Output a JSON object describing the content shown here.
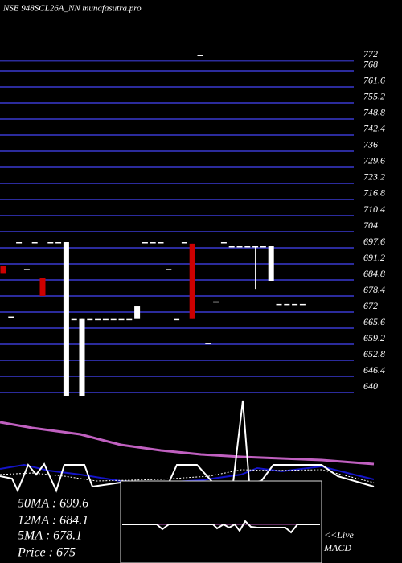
{
  "chart_data": {
    "type": "candlestick",
    "title": "NSE 948SCL26A_NN munafasutra.pro",
    "open": [
      685,
      668,
      697.6,
      687,
      697.6,
      676.2,
      697.6,
      697.6,
      697.6,
      667,
      667,
      667,
      667,
      667,
      667,
      667,
      667,
      672,
      697.6,
      697.6,
      697.6,
      687,
      667,
      697.6,
      667,
      772,
      657.5,
      674,
      697.6,
      696,
      696,
      696,
      696,
      696,
      696,
      673,
      673,
      673,
      673
    ],
    "high": [
      688,
      668,
      697.6,
      687,
      697.6,
      683.2,
      697.6,
      697.6,
      697.6,
      667,
      667,
      667,
      667,
      667,
      667,
      667,
      667,
      672,
      697.6,
      697.6,
      697.6,
      687,
      667,
      697.6,
      697,
      772,
      657.5,
      674,
      697.6,
      696,
      696,
      696,
      696,
      696,
      696,
      673,
      673,
      673,
      673
    ],
    "low": [
      685,
      668,
      697.6,
      687,
      697.6,
      676.2,
      697.6,
      697.6,
      636.5,
      667,
      636.5,
      667,
      667,
      667,
      667,
      667,
      667,
      667,
      697.6,
      697.6,
      697.6,
      687,
      667,
      697.6,
      667,
      772,
      657.5,
      674,
      697.6,
      696,
      696,
      696,
      679,
      696,
      682,
      673,
      673,
      673,
      673
    ],
    "close": [
      688,
      668,
      697.6,
      687,
      697.6,
      683.2,
      697.6,
      697.6,
      636.5,
      667,
      636.5,
      667,
      667,
      667,
      667,
      667,
      667,
      667,
      697.6,
      697.6,
      697.6,
      687,
      667,
      697.6,
      697,
      772,
      657.5,
      674,
      697.6,
      696,
      696,
      696,
      696,
      696,
      682,
      673,
      673,
      673,
      673
    ],
    "up_color": "#cc0000",
    "down_color": "#ffffff",
    "grid_color": "#2b2b9c",
    "ylim": [
      636.5,
      793.9
    ],
    "yticks": [
      772,
      768,
      761.6,
      755.2,
      748.8,
      742.4,
      736,
      729.6,
      723.2,
      716.8,
      710.4,
      704,
      697.6,
      691.2,
      684.8,
      678.4,
      672,
      665.6,
      659.2,
      652.8,
      646.4,
      640
    ],
    "grid": true,
    "indicators": [
      "50MA : 699.6",
      "12MA : 684.1",
      "5MA : 678.1",
      "Price : 675"
    ],
    "macd_label": [
      "<<Live",
      "MACD"
    ]
  }
}
